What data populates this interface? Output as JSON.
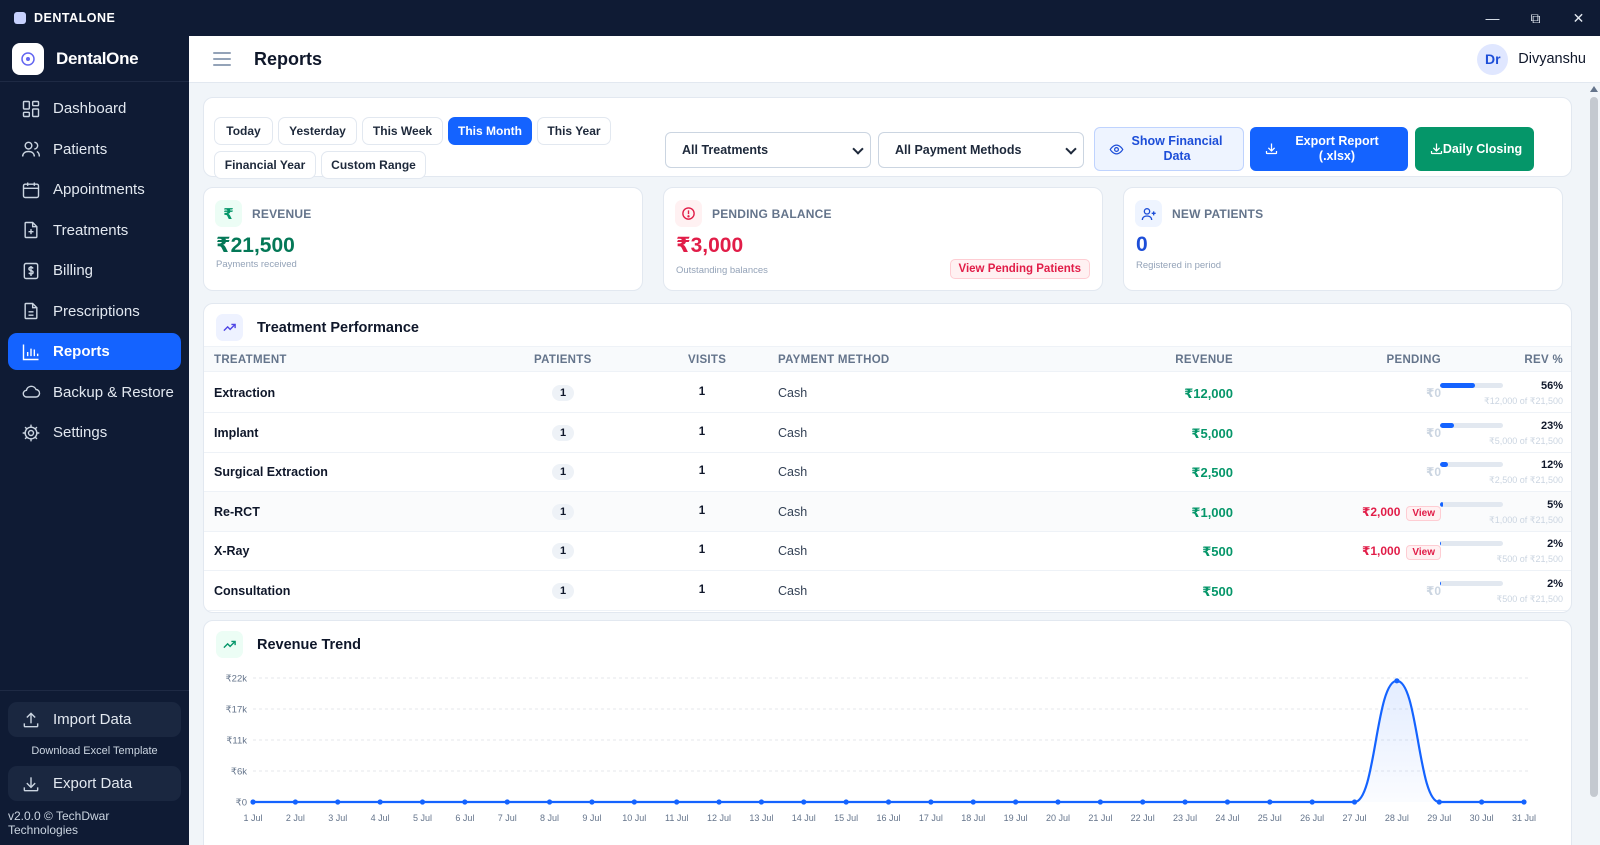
{
  "titlebar": {
    "app": "DENTALONE",
    "minimize": "—",
    "restore": "⧉",
    "close": "✕"
  },
  "sidebar": {
    "brand": "DentalOne",
    "items": [
      {
        "label": "Dashboard",
        "icon": "dashboard-icon"
      },
      {
        "label": "Patients",
        "icon": "users-icon"
      },
      {
        "label": "Appointments",
        "icon": "calendar-icon"
      },
      {
        "label": "Treatments",
        "icon": "file-plus-icon"
      },
      {
        "label": "Billing",
        "icon": "dollar-receipt-icon"
      },
      {
        "label": "Prescriptions",
        "icon": "document-icon"
      },
      {
        "label": "Reports",
        "icon": "bar-chart-icon",
        "active": true
      },
      {
        "label": "Backup & Restore",
        "icon": "cloud-icon"
      },
      {
        "label": "Settings",
        "icon": "gear-icon"
      }
    ],
    "import_label": "Import Data",
    "template_link": "Download Excel Template",
    "export_label": "Export Data",
    "version": "v2.0.0 © TechDwar Technologies"
  },
  "topbar": {
    "title": "Reports",
    "avatar": "Dr",
    "user": "Divyanshu"
  },
  "filters": {
    "periods": [
      "Today",
      "Yesterday",
      "This Week",
      "This Month",
      "This Year",
      "Financial Year",
      "Custom Range"
    ],
    "active_period": "This Month",
    "treatment_select": "All Treatments",
    "payment_select": "All Payment Methods",
    "show_financial": "Show Financial Data",
    "export_report": "Export Report (.xlsx)",
    "daily_closing": "Daily Closing"
  },
  "stats": {
    "revenue": {
      "label": "REVENUE",
      "value": "₹21,500",
      "sub": "Payments received"
    },
    "pending": {
      "label": "PENDING BALANCE",
      "value": "₹3,000",
      "sub": "Outstanding balances",
      "action": "View Pending Patients"
    },
    "new_patients": {
      "label": "NEW PATIENTS",
      "value": "0",
      "sub": "Registered in period"
    }
  },
  "performance": {
    "title": "Treatment Performance",
    "columns": [
      "TREATMENT",
      "PATIENTS",
      "VISITS",
      "PAYMENT METHOD",
      "REVENUE",
      "PENDING",
      "REV %"
    ],
    "rows": [
      {
        "name": "Extraction",
        "patients": "1",
        "visits": "1",
        "method": "Cash",
        "revenue": "₹12,000",
        "pending": "₹0",
        "pct": "56%",
        "share": 56,
        "share_text": "₹12,000 of ₹21,500"
      },
      {
        "name": "Implant",
        "patients": "1",
        "visits": "1",
        "method": "Cash",
        "revenue": "₹5,000",
        "pending": "₹0",
        "pct": "23%",
        "share": 23,
        "share_text": "₹5,000 of ₹21,500"
      },
      {
        "name": "Surgical Extraction",
        "patients": "1",
        "visits": "1",
        "method": "Cash",
        "revenue": "₹2,500",
        "pending": "₹0",
        "pct": "12%",
        "share": 12,
        "share_text": "₹2,500 of ₹21,500"
      },
      {
        "name": "Re-RCT",
        "patients": "1",
        "visits": "1",
        "method": "Cash",
        "revenue": "₹1,000",
        "pending": "₹2,000",
        "view": "View",
        "pct": "5%",
        "share": 5,
        "share_text": "₹1,000 of ₹21,500"
      },
      {
        "name": "X-Ray",
        "patients": "1",
        "visits": "1",
        "method": "Cash",
        "revenue": "₹500",
        "pending": "₹1,000",
        "view": "View",
        "pct": "2%",
        "share": 2,
        "share_text": "₹500 of ₹21,500"
      },
      {
        "name": "Consultation",
        "patients": "1",
        "visits": "1",
        "method": "Cash",
        "revenue": "₹500",
        "pending": "₹0",
        "pct": "2%",
        "share": 2,
        "share_text": "₹500 of ₹21,500"
      }
    ]
  },
  "trend": {
    "title": "Revenue Trend",
    "chart_data": {
      "type": "area",
      "y_ticks": [
        "₹22k",
        "₹17k",
        "₹11k",
        "₹6k",
        "₹0"
      ],
      "ylim": [
        0,
        22000
      ],
      "x": [
        "1 Jul",
        "2 Jul",
        "3 Jul",
        "4 Jul",
        "5 Jul",
        "6 Jul",
        "7 Jul",
        "8 Jul",
        "9 Jul",
        "10 Jul",
        "11 Jul",
        "12 Jul",
        "13 Jul",
        "14 Jul",
        "15 Jul",
        "16 Jul",
        "17 Jul",
        "18 Jul",
        "19 Jul",
        "20 Jul",
        "21 Jul",
        "22 Jul",
        "23 Jul",
        "24 Jul",
        "25 Jul",
        "26 Jul",
        "27 Jul",
        "28 Jul",
        "29 Jul",
        "30 Jul",
        "31 Jul"
      ],
      "values": [
        0,
        0,
        0,
        0,
        0,
        0,
        0,
        0,
        0,
        0,
        0,
        0,
        0,
        0,
        0,
        0,
        0,
        0,
        0,
        0,
        0,
        0,
        0,
        0,
        0,
        0,
        0,
        21500,
        0,
        0,
        0
      ],
      "color": "#1463ff"
    }
  }
}
